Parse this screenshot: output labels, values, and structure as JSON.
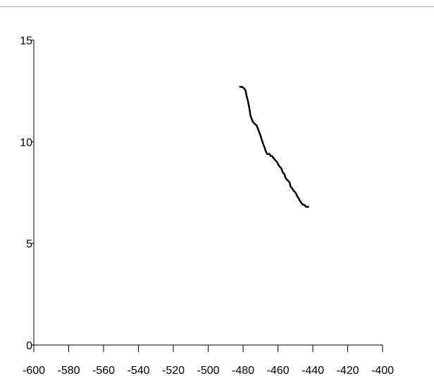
{
  "colors": {
    "frame_line": "#a7b4d8",
    "axis": "#000000",
    "series": "#000000",
    "background": "#ffffff"
  },
  "chart_data": {
    "type": "line",
    "title": "",
    "xlabel": "",
    "ylabel": "",
    "xlim": [
      -600,
      -400
    ],
    "ylim": [
      0,
      15
    ],
    "xticks": [
      -600,
      -580,
      -560,
      -540,
      -520,
      -500,
      -480,
      -460,
      -440,
      -420,
      -400
    ],
    "xtick_labels": [
      "-600",
      "-580",
      "-560",
      "-540",
      "-520",
      "-500",
      "-480",
      "-460",
      "-440",
      "-420",
      "-400"
    ],
    "yticks": [
      0,
      5,
      10,
      15
    ],
    "ytick_labels": [
      "0",
      "5",
      "10",
      "15"
    ],
    "grid": false,
    "legend": "none",
    "series": [
      {
        "x": [
          -481.7,
          -480.5,
          -479.1,
          -478.5,
          -478.1,
          -477.2,
          -476.3,
          -475.8,
          -474.5,
          -473.5,
          -472.2,
          -471.3,
          -470.4,
          -469.3,
          -468.5,
          -467.6,
          -466.8,
          -466.1,
          -464.8,
          -464.2,
          -463.4,
          -462.6,
          -461.6,
          -460.5,
          -459.3,
          -458.1,
          -457.3,
          -456.3,
          -455.5,
          -454.4,
          -453.3,
          -452.8,
          -451.8,
          -451.1,
          -449.9,
          -448.8,
          -448.0,
          -447.5,
          -446.6,
          -445.8,
          -445.0,
          -443.8,
          -442.6
        ],
        "y": [
          12.7,
          12.7,
          12.6,
          12.5,
          12.3,
          12.0,
          11.6,
          11.3,
          11.0,
          10.9,
          10.8,
          10.6,
          10.4,
          10.1,
          9.9,
          9.7,
          9.5,
          9.4,
          9.4,
          9.3,
          9.3,
          9.2,
          9.1,
          9.0,
          8.8,
          8.7,
          8.5,
          8.4,
          8.2,
          8.1,
          8.0,
          7.8,
          7.7,
          7.6,
          7.5,
          7.3,
          7.2,
          7.1,
          7.0,
          6.9,
          6.9,
          6.8,
          6.8
        ]
      }
    ]
  }
}
